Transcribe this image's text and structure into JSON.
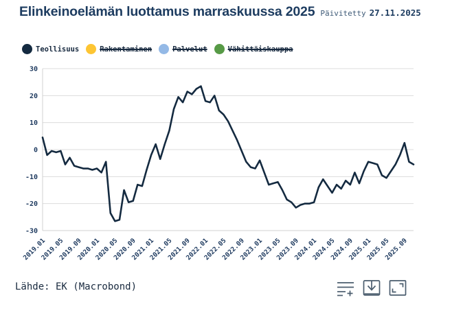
{
  "header": {
    "title": "Elinkeinoelämän luottamus marraskuussa 2025",
    "updated_label": "Päivitetty",
    "updated_date": "27.11.2025"
  },
  "legend": {
    "items": [
      {
        "label": "Teollisuus",
        "color": "#142a40",
        "active": true
      },
      {
        "label": "Rakentaminen",
        "color": "#fdc533",
        "active": false
      },
      {
        "label": "Palvelut",
        "color": "#94b9e6",
        "active": false
      },
      {
        "label": "Vähittäiskauppa",
        "color": "#579a46",
        "active": false
      }
    ]
  },
  "footer": {
    "source_label": "Lähde: EK (Macrobond)"
  },
  "toolbar": {
    "icons": [
      "add-series-icon",
      "download-icon",
      "fullscreen-icon"
    ]
  },
  "colors": {
    "title": "#1d3c60",
    "axis_text": "#1e3a5f",
    "grid": "#dcdcdc",
    "axis_line": "#d0d0d0",
    "icon": "#4a5c6d"
  },
  "chart_data": {
    "type": "line",
    "title": "Elinkeinoelämän luottamus marraskuussa 2025",
    "xlabel": "",
    "ylabel": "",
    "ylim": [
      -30,
      30
    ],
    "yticks": [
      30,
      20,
      10,
      0,
      -10,
      -20,
      -30
    ],
    "grid": true,
    "legend_position": "top",
    "xtick_every": 4,
    "x": [
      "2019.01",
      "2019.02",
      "2019.03",
      "2019.04",
      "2019.05",
      "2019.06",
      "2019.07",
      "2019.08",
      "2019.09",
      "2019.10",
      "2019.11",
      "2019.12",
      "2020.01",
      "2020.02",
      "2020.03",
      "2020.04",
      "2020.05",
      "2020.06",
      "2020.07",
      "2020.08",
      "2020.09",
      "2020.10",
      "2020.11",
      "2020.12",
      "2021.01",
      "2021.02",
      "2021.03",
      "2021.04",
      "2021.05",
      "2021.06",
      "2021.07",
      "2021.08",
      "2021.09",
      "2021.10",
      "2021.11",
      "2021.12",
      "2022.01",
      "2022.02",
      "2022.03",
      "2022.04",
      "2022.05",
      "2022.06",
      "2022.07",
      "2022.08",
      "2022.09",
      "2022.10",
      "2022.11",
      "2022.12",
      "2023.01",
      "2023.02",
      "2023.03",
      "2023.04",
      "2023.05",
      "2023.06",
      "2023.07",
      "2023.08",
      "2023.09",
      "2023.10",
      "2023.11",
      "2023.12",
      "2024.01",
      "2024.02",
      "2024.03",
      "2024.04",
      "2024.05",
      "2024.06",
      "2024.07",
      "2024.08",
      "2024.09",
      "2024.10",
      "2024.11",
      "2024.12",
      "2025.01",
      "2025.02",
      "2025.03",
      "2025.04",
      "2025.05",
      "2025.06",
      "2025.07",
      "2025.08",
      "2025.09",
      "2025.10",
      "2025.11"
    ],
    "series": [
      {
        "name": "Teollisuus",
        "color": "#142a40",
        "values": [
          4.5,
          -2,
          -0.5,
          -1,
          -0.5,
          -5.5,
          -3,
          -6,
          -6.5,
          -7,
          -7,
          -7.5,
          -7,
          -8.5,
          -4.5,
          -23.5,
          -26.5,
          -26,
          -15,
          -19.5,
          -19,
          -13,
          -13.5,
          -7.5,
          -2,
          2,
          -3.5,
          2,
          7,
          15,
          19.5,
          17.5,
          21.5,
          20.5,
          22.5,
          23.5,
          18,
          17.5,
          20,
          14.5,
          13,
          10.5,
          7,
          3.5,
          -0.5,
          -4.5,
          -6.5,
          -7,
          -4,
          -8.5,
          -13,
          -12.5,
          -12,
          -15,
          -18.5,
          -19.5,
          -21.5,
          -20.5,
          -20,
          -20,
          -19.5,
          -14,
          -11,
          -13.5,
          -16,
          -13,
          -14.5,
          -11.5,
          -13,
          -8.5,
          -12.5,
          -8,
          -4.5,
          -5,
          -5.5,
          -9.5,
          -10.5,
          -8,
          -5.5,
          -2,
          2.5,
          -4.5,
          -5.5
        ]
      }
    ]
  }
}
